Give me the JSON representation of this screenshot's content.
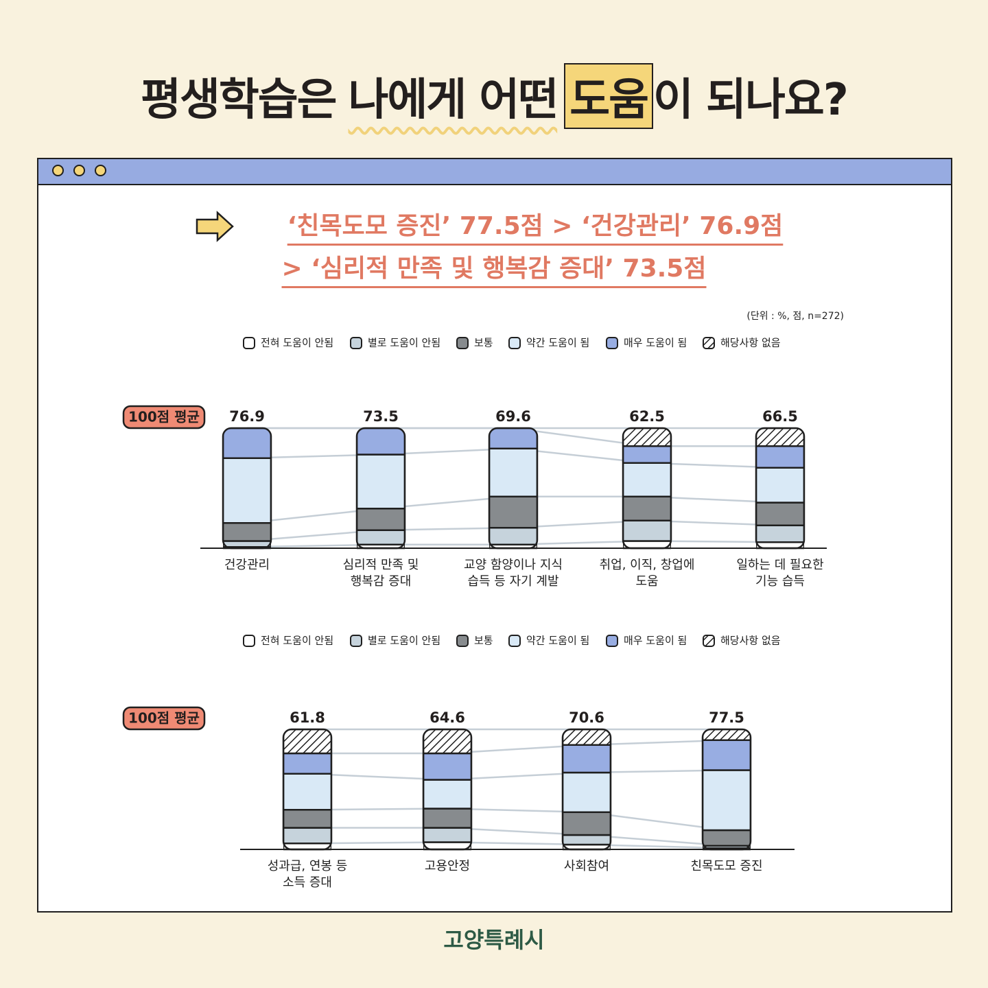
{
  "header": {
    "title_parts": [
      "평생학습은",
      "나에게 어떤",
      "도움",
      "이 되나요?"
    ]
  },
  "headline": [
    "‘친목도모 증진’ 77.5점 > ‘건강관리’ 76.9점",
    "> ‘심리적 만족 및 행복감 증대’ 73.5점"
  ],
  "footer": "고양특례시",
  "chart_data": [
    {
      "type": "bar",
      "stacked": true,
      "note": "(단위 : %, 점, n=272)",
      "badge": "100점 평균",
      "categories": [
        "건강관리",
        "심리적 만족 및\n행복감 증대",
        "교양 함양이나 지식\n습득 등 자기 계발",
        "취업, 이직, 창업에\n도움",
        "일하는 데 필요한\n기능 습득"
      ],
      "scores": [
        76.9,
        73.5,
        69.6,
        62.5,
        66.5
      ],
      "ylim": [
        0,
        100
      ],
      "series": [
        {
          "name": "전혀 도움이 안됨",
          "color": "#ffffff",
          "values": [
            1,
            3,
            3,
            6,
            5
          ]
        },
        {
          "name": "별로 도움이 안됨",
          "color": "#c6d3dc",
          "values": [
            5,
            12,
            14,
            17,
            14
          ]
        },
        {
          "name": "보통",
          "color": "#878b8e",
          "values": [
            15,
            18,
            26,
            20,
            19
          ]
        },
        {
          "name": "약간 도움이 됨",
          "color": "#d9e9f6",
          "values": [
            54,
            45,
            40,
            28,
            29
          ]
        },
        {
          "name": "매우 도움이 됨",
          "color": "#98ade2",
          "values": [
            25,
            22,
            17,
            14,
            18
          ]
        },
        {
          "name": "해당사항 없음",
          "color": "#ffffff",
          "pattern": "hatch",
          "values": [
            0,
            0,
            0,
            15,
            15
          ]
        }
      ]
    },
    {
      "type": "bar",
      "stacked": true,
      "badge": "100점 평균",
      "categories": [
        "성과급, 연봉 등\n소득 증대",
        "고용안정",
        "사회참여",
        "친목도모 증진"
      ],
      "scores": [
        61.8,
        64.6,
        70.6,
        77.5
      ],
      "ylim": [
        0,
        100
      ],
      "series": [
        {
          "name": "전혀 도움이 안됨",
          "color": "#ffffff",
          "values": [
            5,
            6,
            4,
            1
          ]
        },
        {
          "name": "별로 도움이 안됨",
          "color": "#c6d3dc",
          "values": [
            13,
            12,
            8,
            2
          ]
        },
        {
          "name": "보통",
          "color": "#878b8e",
          "values": [
            15,
            16,
            19,
            13
          ]
        },
        {
          "name": "약간 도움이 됨",
          "color": "#d9e9f6",
          "values": [
            30,
            24,
            33,
            50
          ]
        },
        {
          "name": "매우 도움이 됨",
          "color": "#98ade2",
          "values": [
            17,
            22,
            23,
            25
          ]
        },
        {
          "name": "해당사항 없음",
          "color": "#ffffff",
          "pattern": "hatch",
          "values": [
            20,
            20,
            13,
            9
          ]
        }
      ]
    }
  ]
}
